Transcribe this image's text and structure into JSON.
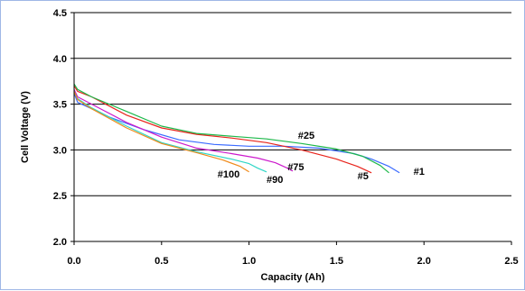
{
  "chart_data": {
    "type": "line",
    "xlabel": "Capacity (Ah)",
    "ylabel": "Cell Voltage (V)",
    "xlim": [
      0.0,
      2.5
    ],
    "ylim": [
      2.0,
      4.5
    ],
    "x_ticks": [
      "0.0",
      "0.5",
      "1.0",
      "1.5",
      "2.0",
      "2.5"
    ],
    "y_ticks": [
      "2.0",
      "2.5",
      "3.0",
      "3.5",
      "4.0",
      "4.5"
    ],
    "grid": "horizontal",
    "series": [
      {
        "name": "#1",
        "color": "#3b6bff",
        "points": [
          [
            0,
            3.62
          ],
          [
            0.02,
            3.52
          ],
          [
            0.1,
            3.45
          ],
          [
            0.2,
            3.36
          ],
          [
            0.4,
            3.22
          ],
          [
            0.6,
            3.11
          ],
          [
            0.8,
            3.06
          ],
          [
            1.0,
            3.04
          ],
          [
            1.2,
            3.04
          ],
          [
            1.4,
            3.02
          ],
          [
            1.6,
            2.96
          ],
          [
            1.7,
            2.9
          ],
          [
            1.8,
            2.82
          ],
          [
            1.86,
            2.75
          ]
        ]
      },
      {
        "name": "#5",
        "color": "#e8241c",
        "points": [
          [
            0,
            3.7
          ],
          [
            0.02,
            3.64
          ],
          [
            0.1,
            3.58
          ],
          [
            0.3,
            3.38
          ],
          [
            0.5,
            3.24
          ],
          [
            0.7,
            3.17
          ],
          [
            0.9,
            3.13
          ],
          [
            1.1,
            3.08
          ],
          [
            1.3,
            3.0
          ],
          [
            1.5,
            2.9
          ],
          [
            1.62,
            2.82
          ],
          [
            1.7,
            2.75
          ]
        ]
      },
      {
        "name": "#25",
        "color": "#1db84a",
        "points": [
          [
            0,
            3.72
          ],
          [
            0.02,
            3.66
          ],
          [
            0.1,
            3.58
          ],
          [
            0.3,
            3.42
          ],
          [
            0.5,
            3.26
          ],
          [
            0.7,
            3.18
          ],
          [
            0.9,
            3.15
          ],
          [
            1.1,
            3.12
          ],
          [
            1.3,
            3.07
          ],
          [
            1.5,
            3.01
          ],
          [
            1.65,
            2.93
          ],
          [
            1.75,
            2.83
          ],
          [
            1.8,
            2.75
          ]
        ]
      },
      {
        "name": "#75",
        "color": "#cc1acc",
        "points": [
          [
            0,
            3.66
          ],
          [
            0.02,
            3.58
          ],
          [
            0.1,
            3.5
          ],
          [
            0.3,
            3.3
          ],
          [
            0.5,
            3.14
          ],
          [
            0.7,
            3.02
          ],
          [
            0.9,
            2.96
          ],
          [
            1.05,
            2.91
          ],
          [
            1.15,
            2.86
          ],
          [
            1.22,
            2.8
          ],
          [
            1.25,
            2.77
          ]
        ]
      },
      {
        "name": "#90",
        "color": "#2fd6c6",
        "points": [
          [
            0,
            3.64
          ],
          [
            0.02,
            3.56
          ],
          [
            0.1,
            3.46
          ],
          [
            0.3,
            3.26
          ],
          [
            0.5,
            3.08
          ],
          [
            0.7,
            2.98
          ],
          [
            0.9,
            2.9
          ],
          [
            1.0,
            2.85
          ],
          [
            1.05,
            2.8
          ],
          [
            1.1,
            2.76
          ]
        ]
      },
      {
        "name": "#100",
        "color": "#f08a1a",
        "points": [
          [
            0,
            3.64
          ],
          [
            0.02,
            3.55
          ],
          [
            0.1,
            3.45
          ],
          [
            0.3,
            3.24
          ],
          [
            0.5,
            3.07
          ],
          [
            0.7,
            2.97
          ],
          [
            0.85,
            2.89
          ],
          [
            0.95,
            2.82
          ],
          [
            1.0,
            2.76
          ]
        ]
      }
    ],
    "annotations": [
      {
        "text": "#1",
        "x": 1.94,
        "y": 2.73
      },
      {
        "text": "#5",
        "x": 1.62,
        "y": 2.68
      },
      {
        "text": "#25",
        "x": 1.28,
        "y": 3.12
      },
      {
        "text": "#75",
        "x": 1.22,
        "y": 2.78
      },
      {
        "text": "#90",
        "x": 1.1,
        "y": 2.64
      },
      {
        "text": "#100",
        "x": 0.82,
        "y": 2.7
      }
    ]
  }
}
